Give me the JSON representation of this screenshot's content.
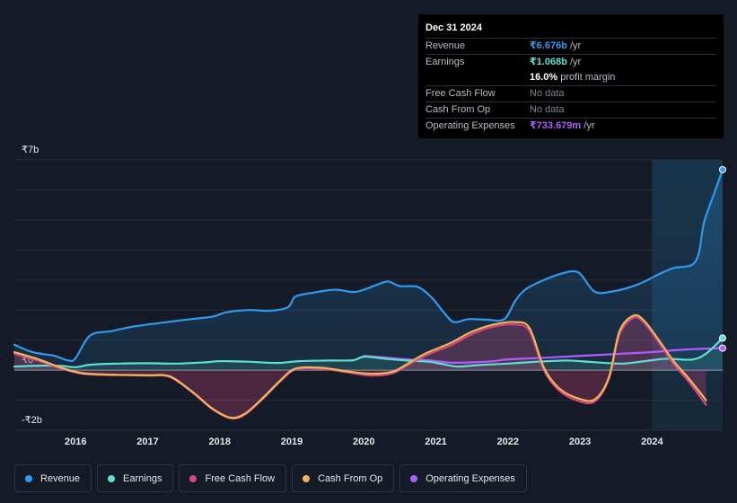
{
  "chart_data": {
    "type": "line",
    "title": "",
    "ylabel": "",
    "xlabel": "",
    "ylim": [
      -2,
      7
    ],
    "y_tick_labels": [
      {
        "value": 7,
        "label": "₹7b"
      },
      {
        "value": 0,
        "label": "₹0"
      },
      {
        "value": -2,
        "label": "-₹2b"
      }
    ],
    "x_range": [
      2015.15,
      2024.98
    ],
    "x_ticks": [
      2016,
      2017,
      2018,
      2019,
      2020,
      2021,
      2022,
      2023,
      2024
    ],
    "x_tick_labels": [
      "2016",
      "2017",
      "2018",
      "2019",
      "2020",
      "2021",
      "2022",
      "2023",
      "2024"
    ],
    "highlight_from": 2024.0,
    "series": [
      {
        "name": "Revenue",
        "color": "#2e9bf0",
        "fill": true,
        "points": [
          [
            2015.15,
            0.85
          ],
          [
            2015.4,
            0.6
          ],
          [
            2015.7,
            0.48
          ],
          [
            2015.9,
            0.32
          ],
          [
            2016.0,
            0.4
          ],
          [
            2016.2,
            1.15
          ],
          [
            2016.5,
            1.3
          ],
          [
            2016.8,
            1.45
          ],
          [
            2017.2,
            1.58
          ],
          [
            2017.6,
            1.7
          ],
          [
            2017.9,
            1.78
          ],
          [
            2018.1,
            1.93
          ],
          [
            2018.4,
            2.0
          ],
          [
            2018.7,
            1.98
          ],
          [
            2018.95,
            2.1
          ],
          [
            2019.05,
            2.45
          ],
          [
            2019.3,
            2.58
          ],
          [
            2019.6,
            2.68
          ],
          [
            2019.85,
            2.6
          ],
          [
            2020.0,
            2.68
          ],
          [
            2020.25,
            2.9
          ],
          [
            2020.35,
            2.95
          ],
          [
            2020.5,
            2.8
          ],
          [
            2020.75,
            2.77
          ],
          [
            2020.95,
            2.4
          ],
          [
            2021.1,
            1.95
          ],
          [
            2021.25,
            1.6
          ],
          [
            2021.45,
            1.7
          ],
          [
            2021.7,
            1.68
          ],
          [
            2021.95,
            1.7
          ],
          [
            2022.1,
            2.3
          ],
          [
            2022.25,
            2.7
          ],
          [
            2022.5,
            3.0
          ],
          [
            2022.75,
            3.22
          ],
          [
            2022.98,
            3.25
          ],
          [
            2023.2,
            2.62
          ],
          [
            2023.45,
            2.62
          ],
          [
            2023.8,
            2.85
          ],
          [
            2024.1,
            3.2
          ],
          [
            2024.3,
            3.4
          ],
          [
            2024.55,
            3.5
          ],
          [
            2024.65,
            3.9
          ],
          [
            2024.72,
            4.9
          ],
          [
            2024.85,
            5.8
          ],
          [
            2024.98,
            6.676
          ]
        ]
      },
      {
        "name": "Earnings",
        "color": "#5ee0d0",
        "fill": true,
        "points": [
          [
            2015.15,
            0.12
          ],
          [
            2015.5,
            0.15
          ],
          [
            2015.8,
            0.14
          ],
          [
            2016.0,
            0.1
          ],
          [
            2016.2,
            0.18
          ],
          [
            2016.6,
            0.22
          ],
          [
            2017.0,
            0.23
          ],
          [
            2017.4,
            0.22
          ],
          [
            2017.8,
            0.26
          ],
          [
            2018.0,
            0.3
          ],
          [
            2018.4,
            0.28
          ],
          [
            2018.8,
            0.24
          ],
          [
            2019.1,
            0.3
          ],
          [
            2019.5,
            0.32
          ],
          [
            2019.85,
            0.33
          ],
          [
            2020.0,
            0.45
          ],
          [
            2020.3,
            0.38
          ],
          [
            2020.6,
            0.32
          ],
          [
            2020.9,
            0.28
          ],
          [
            2021.1,
            0.2
          ],
          [
            2021.3,
            0.12
          ],
          [
            2021.6,
            0.17
          ],
          [
            2022.0,
            0.22
          ],
          [
            2022.4,
            0.28
          ],
          [
            2022.8,
            0.32
          ],
          [
            2023.0,
            0.3
          ],
          [
            2023.3,
            0.25
          ],
          [
            2023.6,
            0.22
          ],
          [
            2023.9,
            0.3
          ],
          [
            2024.2,
            0.38
          ],
          [
            2024.55,
            0.35
          ],
          [
            2024.75,
            0.55
          ],
          [
            2024.98,
            1.068
          ]
        ]
      },
      {
        "name": "Free Cash Flow",
        "color": "#d4487c",
        "fill": true,
        "points": [
          [
            2015.15,
            0.55
          ],
          [
            2015.5,
            0.3
          ],
          [
            2015.8,
            0.05
          ],
          [
            2016.1,
            -0.12
          ],
          [
            2016.5,
            -0.16
          ],
          [
            2017.0,
            -0.18
          ],
          [
            2017.3,
            -0.22
          ],
          [
            2017.6,
            -0.7
          ],
          [
            2017.9,
            -1.3
          ],
          [
            2018.15,
            -1.6
          ],
          [
            2018.35,
            -1.48
          ],
          [
            2018.6,
            -0.95
          ],
          [
            2018.85,
            -0.35
          ],
          [
            2019.05,
            0.02
          ],
          [
            2019.4,
            0.05
          ],
          [
            2019.8,
            -0.08
          ],
          [
            2020.1,
            -0.18
          ],
          [
            2020.4,
            -0.1
          ],
          [
            2020.6,
            0.15
          ],
          [
            2020.85,
            0.48
          ],
          [
            2021.2,
            0.82
          ],
          [
            2021.5,
            1.2
          ],
          [
            2021.8,
            1.45
          ],
          [
            2022.1,
            1.52
          ],
          [
            2022.3,
            1.3
          ],
          [
            2022.5,
            0.0
          ],
          [
            2022.7,
            -0.65
          ],
          [
            2022.95,
            -1.0
          ],
          [
            2023.2,
            -1.05
          ],
          [
            2023.4,
            -0.3
          ],
          [
            2023.55,
            1.2
          ],
          [
            2023.75,
            1.75
          ],
          [
            2023.9,
            1.55
          ],
          [
            2024.1,
            0.9
          ],
          [
            2024.3,
            0.2
          ],
          [
            2024.5,
            -0.35
          ],
          [
            2024.75,
            -1.15
          ]
        ]
      },
      {
        "name": "Cash From Op",
        "color": "#f2b35b",
        "fill": false,
        "points": [
          [
            2015.15,
            0.6
          ],
          [
            2015.5,
            0.35
          ],
          [
            2015.8,
            0.08
          ],
          [
            2016.1,
            -0.1
          ],
          [
            2016.5,
            -0.15
          ],
          [
            2017.0,
            -0.17
          ],
          [
            2017.3,
            -0.2
          ],
          [
            2017.6,
            -0.68
          ],
          [
            2017.9,
            -1.28
          ],
          [
            2018.15,
            -1.58
          ],
          [
            2018.35,
            -1.45
          ],
          [
            2018.6,
            -0.92
          ],
          [
            2018.85,
            -0.32
          ],
          [
            2019.05,
            0.05
          ],
          [
            2019.4,
            0.08
          ],
          [
            2019.8,
            -0.05
          ],
          [
            2020.1,
            -0.12
          ],
          [
            2020.4,
            -0.05
          ],
          [
            2020.6,
            0.2
          ],
          [
            2020.85,
            0.55
          ],
          [
            2021.2,
            0.9
          ],
          [
            2021.5,
            1.28
          ],
          [
            2021.8,
            1.52
          ],
          [
            2022.1,
            1.6
          ],
          [
            2022.3,
            1.4
          ],
          [
            2022.5,
            0.08
          ],
          [
            2022.7,
            -0.58
          ],
          [
            2022.95,
            -0.92
          ],
          [
            2023.2,
            -0.98
          ],
          [
            2023.4,
            -0.25
          ],
          [
            2023.55,
            1.3
          ],
          [
            2023.75,
            1.82
          ],
          [
            2023.9,
            1.62
          ],
          [
            2024.1,
            0.98
          ],
          [
            2024.3,
            0.3
          ],
          [
            2024.5,
            -0.25
          ],
          [
            2024.75,
            -1.0
          ]
        ]
      },
      {
        "name": "Operating Expenses",
        "color": "#b05cff",
        "fill": false,
        "points": [
          [
            2020.0,
            0.48
          ],
          [
            2020.3,
            0.42
          ],
          [
            2020.6,
            0.36
          ],
          [
            2020.9,
            0.33
          ],
          [
            2021.2,
            0.25
          ],
          [
            2021.5,
            0.26
          ],
          [
            2021.8,
            0.3
          ],
          [
            2022.0,
            0.36
          ],
          [
            2022.4,
            0.4
          ],
          [
            2022.8,
            0.45
          ],
          [
            2023.2,
            0.5
          ],
          [
            2023.6,
            0.55
          ],
          [
            2024.0,
            0.6
          ],
          [
            2024.3,
            0.66
          ],
          [
            2024.6,
            0.7
          ],
          [
            2024.98,
            0.734
          ]
        ]
      }
    ]
  },
  "tooltip": {
    "date": "Dec 31 2024",
    "rows": [
      {
        "label": "Revenue",
        "value": "₹6.676b",
        "unit": " /yr",
        "style": "c-rev"
      },
      {
        "label": "Earnings",
        "value": "₹1.068b",
        "unit": " /yr",
        "style": "c-earn"
      },
      {
        "label": "",
        "value": "16.0%",
        "unit": " profit margin",
        "style": "c-white"
      },
      {
        "label": "Free Cash Flow",
        "value": "No data",
        "unit": "",
        "style": "none"
      },
      {
        "label": "Cash From Op",
        "value": "No data",
        "unit": "",
        "style": "none"
      },
      {
        "label": "Operating Expenses",
        "value": "₹733.679m",
        "unit": " /yr",
        "style": "c-opex"
      }
    ]
  },
  "legend": [
    {
      "label": "Revenue",
      "color": "#2e9bf0"
    },
    {
      "label": "Earnings",
      "color": "#5ee0d0"
    },
    {
      "label": "Free Cash Flow",
      "color": "#d4487c"
    },
    {
      "label": "Cash From Op",
      "color": "#f2b35b"
    },
    {
      "label": "Operating Expenses",
      "color": "#b05cff"
    }
  ]
}
